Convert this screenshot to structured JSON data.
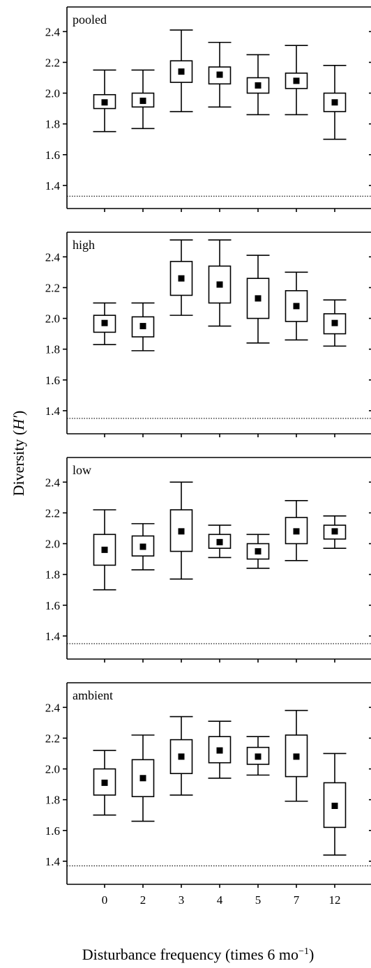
{
  "chart_data": {
    "type": "boxplot",
    "ylabel_prefix": "Diversity (",
    "ylabel_italic": "H′",
    "ylabel_suffix": ")",
    "xlabel_main": "Disturbance frequency (times 6 mo",
    "xlabel_sup": "−1",
    "xlabel_close": ")",
    "categories": [
      "0",
      "2",
      "3",
      "4",
      "5",
      "7",
      "12"
    ],
    "ylim": [
      1.25,
      2.56
    ],
    "yticks": [
      "1.4",
      "1.6",
      "1.8",
      "2.0",
      "2.2",
      "2.4"
    ],
    "panels": [
      {
        "label": "pooled",
        "reference_line": 1.33,
        "boxes": [
          {
            "mean": 1.94,
            "q1": 1.9,
            "q3": 1.99,
            "low": 1.75,
            "high": 2.15
          },
          {
            "mean": 1.95,
            "q1": 1.91,
            "q3": 2.0,
            "low": 1.77,
            "high": 2.15
          },
          {
            "mean": 2.14,
            "q1": 2.07,
            "q3": 2.21,
            "low": 1.88,
            "high": 2.41
          },
          {
            "mean": 2.12,
            "q1": 2.06,
            "q3": 2.17,
            "low": 1.91,
            "high": 2.33
          },
          {
            "mean": 2.05,
            "q1": 2.0,
            "q3": 2.1,
            "low": 1.86,
            "high": 2.25
          },
          {
            "mean": 2.08,
            "q1": 2.03,
            "q3": 2.13,
            "low": 1.86,
            "high": 2.31
          },
          {
            "mean": 1.94,
            "q1": 1.88,
            "q3": 2.0,
            "low": 1.7,
            "high": 2.18
          }
        ]
      },
      {
        "label": "high",
        "reference_line": 1.35,
        "boxes": [
          {
            "mean": 1.97,
            "q1": 1.91,
            "q3": 2.02,
            "low": 1.83,
            "high": 2.1
          },
          {
            "mean": 1.95,
            "q1": 1.88,
            "q3": 2.01,
            "low": 1.79,
            "high": 2.1
          },
          {
            "mean": 2.26,
            "q1": 2.15,
            "q3": 2.37,
            "low": 2.02,
            "high": 2.51
          },
          {
            "mean": 2.22,
            "q1": 2.1,
            "q3": 2.34,
            "low": 1.95,
            "high": 2.51
          },
          {
            "mean": 2.13,
            "q1": 2.0,
            "q3": 2.26,
            "low": 1.84,
            "high": 2.41
          },
          {
            "mean": 2.08,
            "q1": 1.98,
            "q3": 2.18,
            "low": 1.86,
            "high": 2.3
          },
          {
            "mean": 1.97,
            "q1": 1.9,
            "q3": 2.03,
            "low": 1.82,
            "high": 2.12
          }
        ]
      },
      {
        "label": "low",
        "reference_line": 1.35,
        "boxes": [
          {
            "mean": 1.96,
            "q1": 1.86,
            "q3": 2.06,
            "low": 1.7,
            "high": 2.22
          },
          {
            "mean": 1.98,
            "q1": 1.92,
            "q3": 2.05,
            "low": 1.83,
            "high": 2.13
          },
          {
            "mean": 2.08,
            "q1": 1.95,
            "q3": 2.22,
            "low": 1.77,
            "high": 2.4
          },
          {
            "mean": 2.01,
            "q1": 1.97,
            "q3": 2.06,
            "low": 1.91,
            "high": 2.12
          },
          {
            "mean": 1.95,
            "q1": 1.9,
            "q3": 2.0,
            "low": 1.84,
            "high": 2.06
          },
          {
            "mean": 2.08,
            "q1": 2.0,
            "q3": 2.17,
            "low": 1.89,
            "high": 2.28
          },
          {
            "mean": 2.08,
            "q1": 2.03,
            "q3": 2.12,
            "low": 1.97,
            "high": 2.18
          }
        ]
      },
      {
        "label": "ambient",
        "reference_line": 1.37,
        "boxes": [
          {
            "mean": 1.91,
            "q1": 1.83,
            "q3": 2.0,
            "low": 1.7,
            "high": 2.12
          },
          {
            "mean": 1.94,
            "q1": 1.82,
            "q3": 2.06,
            "low": 1.66,
            "high": 2.22
          },
          {
            "mean": 2.08,
            "q1": 1.97,
            "q3": 2.19,
            "low": 1.83,
            "high": 2.34
          },
          {
            "mean": 2.12,
            "q1": 2.04,
            "q3": 2.21,
            "low": 1.94,
            "high": 2.31
          },
          {
            "mean": 2.08,
            "q1": 2.03,
            "q3": 2.14,
            "low": 1.96,
            "high": 2.21
          },
          {
            "mean": 2.08,
            "q1": 1.95,
            "q3": 2.22,
            "low": 1.79,
            "high": 2.38
          },
          {
            "mean": 1.76,
            "q1": 1.62,
            "q3": 1.91,
            "low": 1.44,
            "high": 2.1
          }
        ]
      }
    ]
  }
}
